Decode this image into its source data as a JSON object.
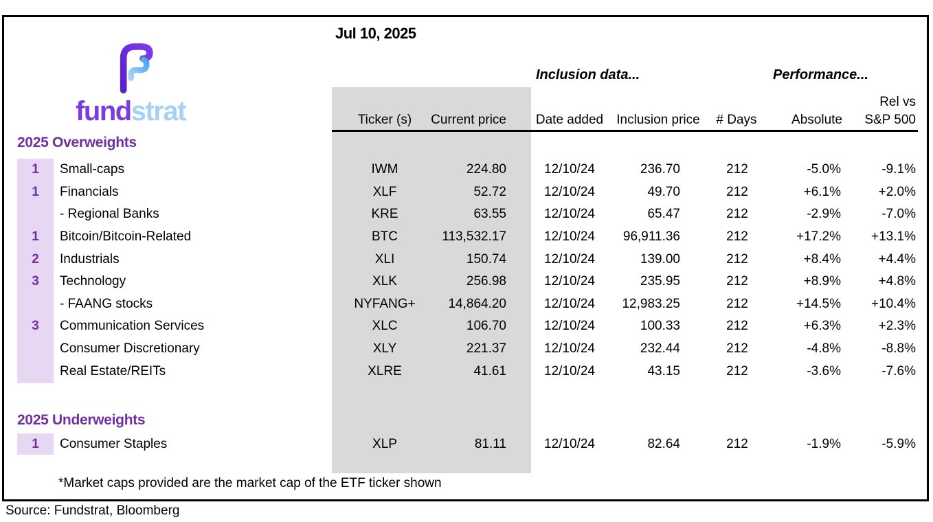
{
  "page": {
    "date": "Jul 10, 2025",
    "footnote": "*Market caps provided are the market cap of the ETF ticker shown",
    "source": "Source: Fundstrat, Bloomberg"
  },
  "logo": {
    "word_primary": "fund",
    "word_secondary": "strat",
    "mark": "fundstrat-f-logo"
  },
  "table": {
    "group_headers": {
      "inclusion": "Inclusion data...",
      "performance": "Performance..."
    },
    "headers": {
      "ticker": "Ticker (s)",
      "current_price": "Current price",
      "date_added": "Date added",
      "inclusion_price": "Inclusion price",
      "days": "# Days",
      "absolute": "Absolute",
      "rel_line1": "Rel vs",
      "rel_line2": "S&P 500"
    },
    "sections": {
      "overweights": {
        "title": "2025 Overweights",
        "rows": [
          {
            "rank": "1",
            "category": "Small-caps",
            "ticker": "IWM",
            "current_price": "224.80",
            "date_added": "12/10/24",
            "inclusion_price": "236.70",
            "days": "212",
            "absolute": "-5.0%",
            "rel_sp500": "-9.1%"
          },
          {
            "rank": "1",
            "category": "Financials",
            "ticker": "XLF",
            "current_price": "52.72",
            "date_added": "12/10/24",
            "inclusion_price": "49.70",
            "days": "212",
            "absolute": "+6.1%",
            "rel_sp500": "+2.0%"
          },
          {
            "rank": "",
            "category": "- Regional Banks",
            "ticker": "KRE",
            "current_price": "63.55",
            "date_added": "12/10/24",
            "inclusion_price": "65.47",
            "days": "212",
            "absolute": "-2.9%",
            "rel_sp500": "-7.0%"
          },
          {
            "rank": "1",
            "category": "Bitcoin/Bitcoin-Related",
            "ticker": "BTC",
            "current_price": "113,532.17",
            "date_added": "12/10/24",
            "inclusion_price": "96,911.36",
            "days": "212",
            "absolute": "+17.2%",
            "rel_sp500": "+13.1%"
          },
          {
            "rank": "2",
            "category": "Industrials",
            "ticker": "XLI",
            "current_price": "150.74",
            "date_added": "12/10/24",
            "inclusion_price": "139.00",
            "days": "212",
            "absolute": "+8.4%",
            "rel_sp500": "+4.4%"
          },
          {
            "rank": "3",
            "category": "Technology",
            "ticker": "XLK",
            "current_price": "256.98",
            "date_added": "12/10/24",
            "inclusion_price": "235.95",
            "days": "212",
            "absolute": "+8.9%",
            "rel_sp500": "+4.8%"
          },
          {
            "rank": "",
            "category": "- FAANG stocks",
            "ticker": "NYFANG+",
            "current_price": "14,864.20",
            "date_added": "12/10/24",
            "inclusion_price": "12,983.25",
            "days": "212",
            "absolute": "+14.5%",
            "rel_sp500": "+10.4%"
          },
          {
            "rank": "3",
            "category": "Communication Services",
            "ticker": "XLC",
            "current_price": "106.70",
            "date_added": "12/10/24",
            "inclusion_price": "100.33",
            "days": "212",
            "absolute": "+6.3%",
            "rel_sp500": "+2.3%"
          },
          {
            "rank": "",
            "category": "Consumer Discretionary",
            "ticker": "XLY",
            "current_price": "221.37",
            "date_added": "12/10/24",
            "inclusion_price": "232.44",
            "days": "212",
            "absolute": "-4.8%",
            "rel_sp500": "-8.8%"
          },
          {
            "rank": "",
            "category": "Real Estate/REITs",
            "ticker": "XLRE",
            "current_price": "41.61",
            "date_added": "12/10/24",
            "inclusion_price": "43.15",
            "days": "212",
            "absolute": "-3.6%",
            "rel_sp500": "-7.6%"
          }
        ]
      },
      "underweights": {
        "title": "2025 Underweights",
        "rows": [
          {
            "rank": "1",
            "category": "Consumer Staples",
            "ticker": "XLP",
            "current_price": "81.11",
            "date_added": "12/10/24",
            "inclusion_price": "82.64",
            "days": "212",
            "absolute": "-1.9%",
            "rel_sp500": "-5.9%"
          }
        ]
      }
    }
  },
  "colors": {
    "accent_purple": "#7030A0",
    "band_lavender": "#E8D7F3",
    "band_gray": "#D9D9D9",
    "logo_purple": "#6C2BD9",
    "logo_blue": "#56AAEF",
    "logo_blue_light": "#A5D2F4"
  }
}
